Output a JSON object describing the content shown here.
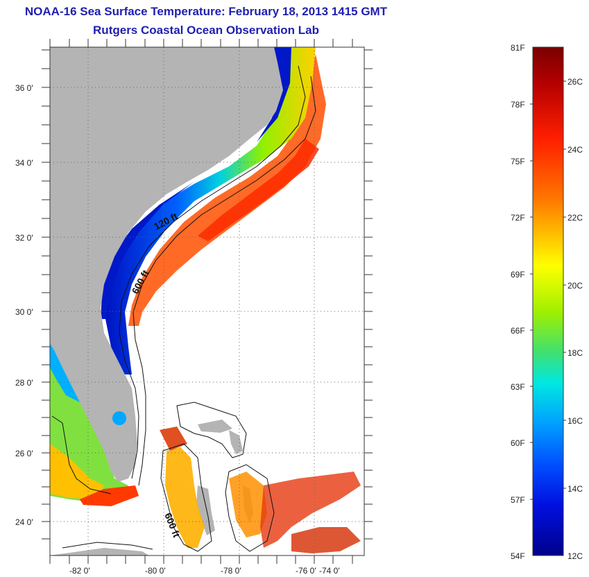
{
  "title": {
    "line1": "NOAA-16 Sea Surface Temperature:  February 18, 2013 1415 GMT",
    "line2": "Rutgers Coastal Ocean Observation Lab"
  },
  "axes": {
    "latitude_labels": [
      "36 0'",
      "34 0'",
      "32 0'",
      "30 0'",
      "28 0'",
      "26 0'",
      "24 0'"
    ],
    "longitude_labels": [
      "-82 0'",
      "-80 0'",
      "-78 0'",
      "-76 0'",
      "-74 0'"
    ]
  },
  "contours": {
    "label_120": "120 ft",
    "label_600": "600 ft",
    "label_600_south": "600 ft"
  },
  "colorbar": {
    "fahrenheit_labels": [
      "81F",
      "78F",
      "75F",
      "72F",
      "69F",
      "66F",
      "63F",
      "60F",
      "57F",
      "54F"
    ],
    "celsius_labels": [
      "26C",
      "24C",
      "22C",
      "20C",
      "18C",
      "16C",
      "14C",
      "12C"
    ],
    "colors": [
      "#7a0000",
      "#c80000",
      "#ff2a00",
      "#ff7a00",
      "#ffc800",
      "#ffff00",
      "#b4f000",
      "#50e050",
      "#00e0c8",
      "#00c8ff",
      "#0078ff",
      "#0028ff",
      "#0000c8",
      "#00007a"
    ]
  },
  "colors": {
    "land": "#b4b4b4",
    "ocean_no_data": "#ffffff",
    "title": "#1f1fb0"
  }
}
